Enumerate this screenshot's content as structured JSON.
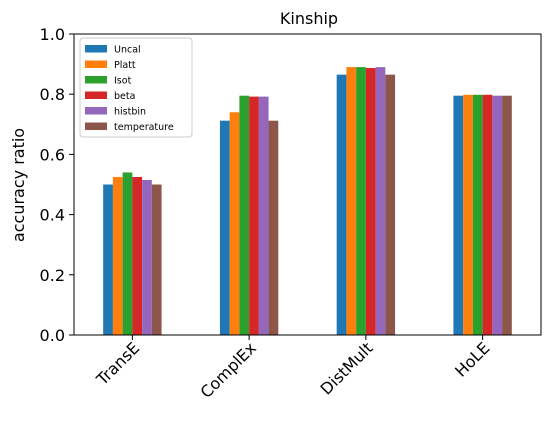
{
  "chart_data": {
    "type": "bar",
    "title": "Kinship",
    "xlabel": "",
    "ylabel": "accuracy ratio",
    "ylim": [
      0,
      1.0
    ],
    "yticks": [
      "0.0",
      "0.2",
      "0.4",
      "0.6",
      "0.8",
      "1.0"
    ],
    "categories": [
      "TransE",
      "ComplEx",
      "DistMult",
      "HoLE"
    ],
    "legend_position": "top-left",
    "grid": false,
    "series": [
      {
        "name": "Uncal",
        "color": "#1f77b4",
        "values": [
          0.5,
          0.712,
          0.865,
          0.795
        ]
      },
      {
        "name": "Platt",
        "color": "#ff7f0e",
        "values": [
          0.525,
          0.74,
          0.89,
          0.798
        ]
      },
      {
        "name": "Isot",
        "color": "#2ca02c",
        "values": [
          0.54,
          0.795,
          0.89,
          0.798
        ]
      },
      {
        "name": "beta",
        "color": "#d62728",
        "values": [
          0.525,
          0.792,
          0.887,
          0.798
        ]
      },
      {
        "name": "histbin",
        "color": "#9467bd",
        "values": [
          0.515,
          0.792,
          0.89,
          0.795
        ]
      },
      {
        "name": "temperature",
        "color": "#8c564b",
        "values": [
          0.5,
          0.712,
          0.865,
          0.795
        ]
      }
    ]
  }
}
